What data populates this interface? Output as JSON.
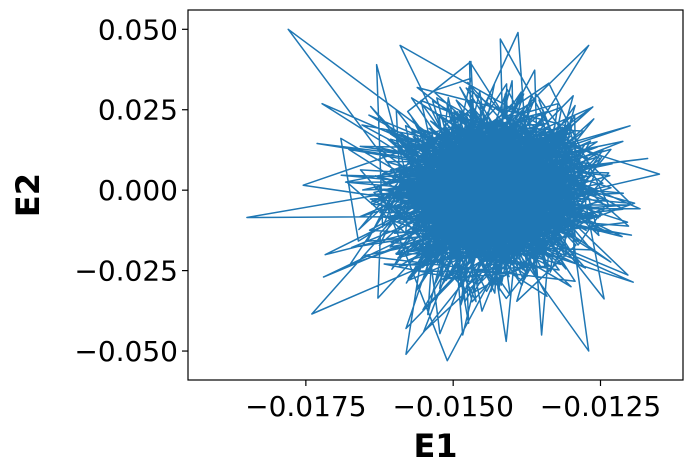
{
  "chart_data": {
    "type": "line",
    "title": "",
    "xlabel": "E1",
    "ylabel": "E2",
    "xlim": [
      -0.0195,
      -0.0111
    ],
    "ylim": [
      -0.059,
      0.056
    ],
    "xticks": [
      -0.0175,
      -0.015,
      -0.0125
    ],
    "xtick_labels": [
      "−0.0175",
      "−0.0150",
      "−0.0125"
    ],
    "yticks": [
      -0.05,
      -0.025,
      0.0,
      0.025,
      0.05
    ],
    "ytick_labels": [
      "−0.050",
      "−0.025",
      "0.000",
      "0.025",
      "0.050"
    ],
    "grid": false,
    "series": [
      {
        "color": "#1f77b4",
        "approx_points": 2000,
        "x_center": -0.01435,
        "x_spread": 0.00085,
        "y_center": -0.0005,
        "y_spread": 0.013,
        "x": [
          -0.0185,
          -0.0163,
          -0.0158,
          -0.0178,
          -0.0139,
          -0.0164,
          -0.0174,
          -0.0158,
          -0.0159,
          -0.0147,
          -0.0151,
          -0.014,
          -0.0135,
          -0.0142,
          -0.0155,
          -0.0172,
          -0.0143,
          -0.0127,
          -0.0141,
          -0.0127,
          -0.013,
          -0.0138,
          -0.012,
          -0.0115
        ],
        "y": [
          -0.0085,
          0.039,
          -0.051,
          0.05,
          0.049,
          0.026,
          -0.0385,
          -0.043,
          0.045,
          0.04,
          -0.053,
          0.034,
          -0.045,
          0.047,
          -0.044,
          -0.027,
          0.033,
          -0.05,
          -0.047,
          0.045,
          -0.03,
          -0.028,
          0.02,
          0.005
        ]
      }
    ]
  }
}
